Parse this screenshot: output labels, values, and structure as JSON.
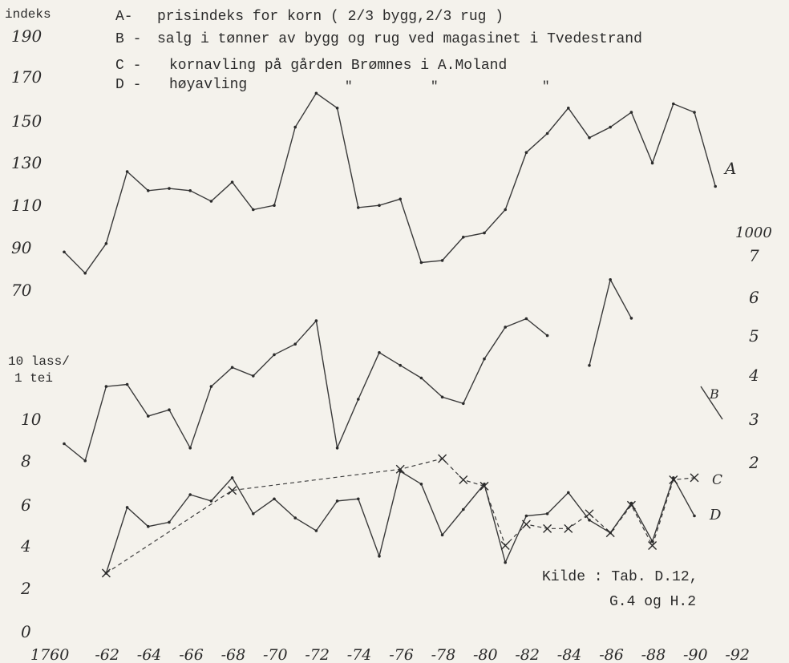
{
  "chart_data": {
    "type": "line",
    "legend": {
      "heading": "indeks",
      "entries": [
        {
          "key": "A-",
          "text": "prisindeks for korn ( 2/3 bygg,2/3 rug )"
        },
        {
          "key": "B -",
          "text": "salg i tønner av bygg og rug ved magasinet i Tvedestrand"
        },
        {
          "key": "C -",
          "text": "kornavling på gården Brømnes i A.Moland"
        },
        {
          "key": "D -",
          "text": "høyavling"
        }
      ],
      "ditto": [
        "\"",
        "\"",
        "\""
      ]
    },
    "left_axis_ticks": [
      "190",
      "170",
      "150",
      "130",
      "110",
      "90",
      "70",
      "10 lass/",
      "1 tei",
      "10",
      "8",
      "6",
      "4",
      "2",
      "0"
    ],
    "right_axis_ticks": [
      "1000",
      "7",
      "6",
      "5",
      "4",
      "3",
      "2"
    ],
    "x_ticks": [
      "1760",
      "-62",
      "-64",
      "-66",
      "-68",
      "-70",
      "-72",
      "-74",
      "-76",
      "-78",
      "-80",
      "-82",
      "-84",
      "-86",
      "-88",
      "-90",
      "-92"
    ],
    "series_labels": {
      "A": "A",
      "B": "B",
      "C": "C",
      "D": "D"
    },
    "source_note": [
      "Kilde : Tab. D.12,",
      "G.4 og H.2"
    ],
    "series": [
      {
        "key": "A",
        "unit": "indeks",
        "x": [
          1760,
          1761,
          1762,
          1763,
          1764,
          1765,
          1766,
          1767,
          1768,
          1769,
          1770,
          1771,
          1772,
          1773,
          1774,
          1775,
          1776,
          1777,
          1778,
          1779,
          1780,
          1781,
          1782,
          1783,
          1784,
          1785,
          1786,
          1787,
          1788,
          1789,
          1790,
          1791
        ],
        "y": [
          82,
          72,
          86,
          120,
          111,
          112,
          111,
          106,
          115,
          102,
          104,
          141,
          157,
          150,
          103,
          104,
          107,
          77,
          78,
          89,
          91,
          102,
          129,
          138,
          150,
          136,
          141,
          148,
          124,
          152,
          148,
          113
        ]
      },
      {
        "key": "B",
        "unit": "1000",
        "x": [
          1785,
          1786,
          1787
        ],
        "y": [
          4.2,
          6.2,
          5.3
        ]
      },
      {
        "key": "C",
        "unit": "10 lass/1 tei",
        "x": [
          1760,
          1761,
          1762,
          1763,
          1764,
          1765,
          1766,
          1767,
          1768,
          1769,
          1770,
          1771,
          1772,
          1773,
          1774,
          1775,
          1776,
          1777,
          1778,
          1779,
          1780,
          1781,
          1782,
          1783,
          1784,
          1785,
          1786,
          1787,
          1788,
          1789,
          1790,
          1791,
          1792
        ],
        "y": [
          8.6,
          7.8,
          11.3,
          11.4,
          9.9,
          10.2,
          8.4,
          11.3,
          12.2,
          11.8,
          12.8,
          13.3,
          14.4,
          8.4,
          10.7,
          12.9,
          12.3,
          11.7,
          10.8,
          10.5,
          12.6,
          14.1,
          14.5,
          13.7,
          null,
          null,
          null,
          null,
          null,
          null,
          null,
          null,
          null
        ]
      },
      {
        "key": "C",
        "unit": "10 lass/1 tei",
        "x": [
          1762,
          1763,
          1764,
          1765,
          1766,
          1767,
          1768,
          1769,
          1770,
          1771,
          1772,
          1773,
          1774,
          1775,
          1776,
          1777,
          1778,
          1779,
          1780,
          1781,
          1782,
          1783,
          1784,
          1785,
          1786,
          1787,
          1788,
          1789,
          1790
        ],
        "y": [
          2.5,
          5.6,
          4.7,
          4.9,
          6.2,
          5.9,
          7.0,
          5.3,
          6.0,
          5.1,
          4.5,
          5.9,
          6.0,
          3.3,
          7.3,
          6.7,
          4.3,
          5.5,
          6.7,
          3.0,
          5.2,
          5.3,
          6.3,
          5.0,
          4.4,
          5.8,
          4.0,
          7.0,
          5.2
        ]
      },
      {
        "key": "D",
        "unit": "10 lass/1 tei",
        "x": [
          1762,
          1768,
          1776,
          1778,
          1779,
          1780,
          1781,
          1782,
          1783,
          1784,
          1785,
          1786,
          1787,
          1788,
          1789,
          1790
        ],
        "y": [
          2.5,
          6.4,
          7.4,
          7.9,
          6.9,
          6.6,
          3.8,
          4.8,
          4.6,
          4.6,
          5.3,
          4.4,
          5.7,
          3.8,
          6.9,
          7.0
        ]
      }
    ]
  }
}
